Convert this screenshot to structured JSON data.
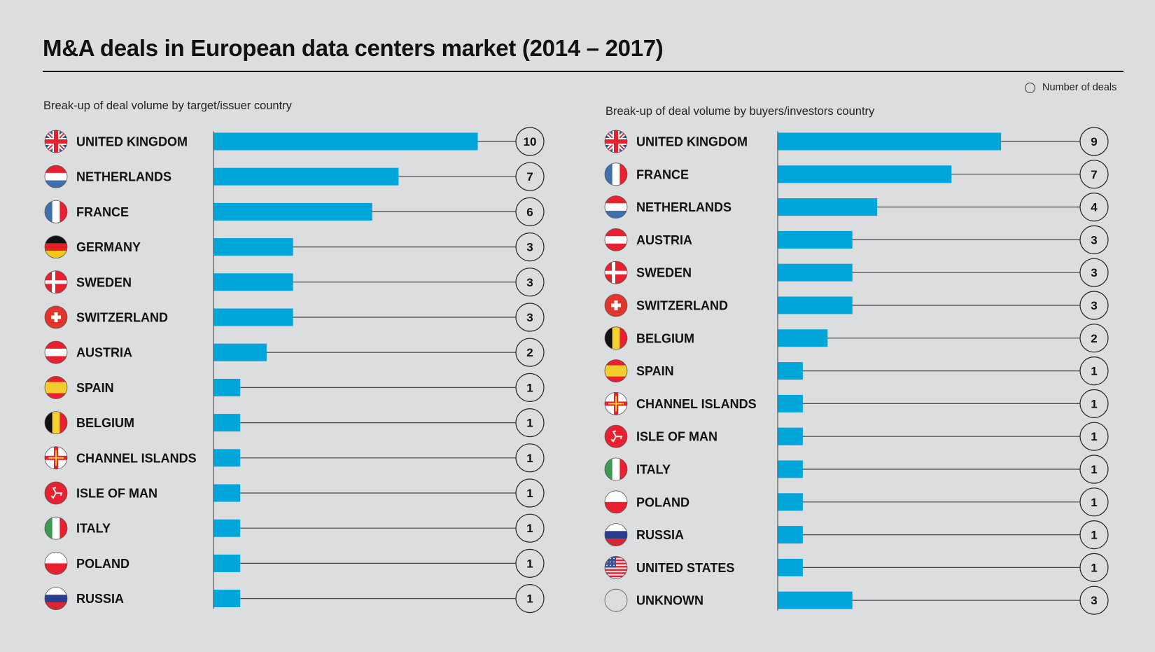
{
  "title": "M&A deals in European data centers market (2014 – 2017)",
  "legend": {
    "label": "Number of deals",
    "icon": "circle-outline-icon"
  },
  "colors": {
    "bar": "#00a5d9",
    "background": "#dcdddf",
    "axis": "#555555",
    "leader": "#444444"
  },
  "chart_data": [
    {
      "type": "bar",
      "orientation": "horizontal",
      "title": "Break-up of deal volume by target/issuer country",
      "xlabel": "",
      "ylabel": "",
      "categories": [
        "UNITED KINGDOM",
        "NETHERLANDS",
        "FRANCE",
        "GERMANY",
        "SWEDEN",
        "SWITZERLAND",
        "AUSTRIA",
        "SPAIN",
        "BELGIUM",
        "CHANNEL ISLANDS",
        "ISLE OF MAN",
        "ITALY",
        "POLAND",
        "RUSSIA"
      ],
      "flags": [
        "uk",
        "nl",
        "fr",
        "de",
        "dk",
        "ch",
        "at",
        "es",
        "be",
        "gg",
        "im",
        "it",
        "pl",
        "ru"
      ],
      "values": [
        10,
        7,
        6,
        3,
        3,
        3,
        2,
        1,
        1,
        1,
        1,
        1,
        1,
        1
      ],
      "value_labels": [
        "10",
        "7",
        "6",
        "3",
        "3",
        "3",
        "2",
        "1",
        "1",
        "1",
        "1",
        "1",
        "1",
        "1"
      ],
      "xlim": [
        0,
        10
      ],
      "grid": false
    },
    {
      "type": "bar",
      "orientation": "horizontal",
      "title": "Break-up of deal volume by buyers/investors country",
      "xlabel": "",
      "ylabel": "",
      "categories": [
        "UNITED KINGDOM",
        "FRANCE",
        "NETHERLANDS",
        "AUSTRIA",
        "SWEDEN",
        "SWITZERLAND",
        "BELGIUM",
        "SPAIN",
        "CHANNEL ISLANDS",
        "ISLE OF MAN",
        "ITALY",
        "POLAND",
        "RUSSIA",
        "UNITED STATES",
        "UNKNOWN"
      ],
      "flags": [
        "uk",
        "fr",
        "nl",
        "at",
        "dk",
        "ch",
        "be",
        "es",
        "gg",
        "im",
        "it",
        "pl",
        "ru",
        "us",
        "none"
      ],
      "values": [
        9,
        7,
        4,
        3,
        3,
        3,
        2,
        1,
        1,
        1,
        1,
        1,
        1,
        1,
        3
      ],
      "value_labels": [
        "9",
        "7",
        "4",
        "3",
        "3",
        "3",
        "2",
        "1",
        "1",
        "1",
        "1",
        "1",
        "1",
        "1",
        "3"
      ],
      "xlim": [
        0,
        9
      ],
      "grid": false
    }
  ]
}
